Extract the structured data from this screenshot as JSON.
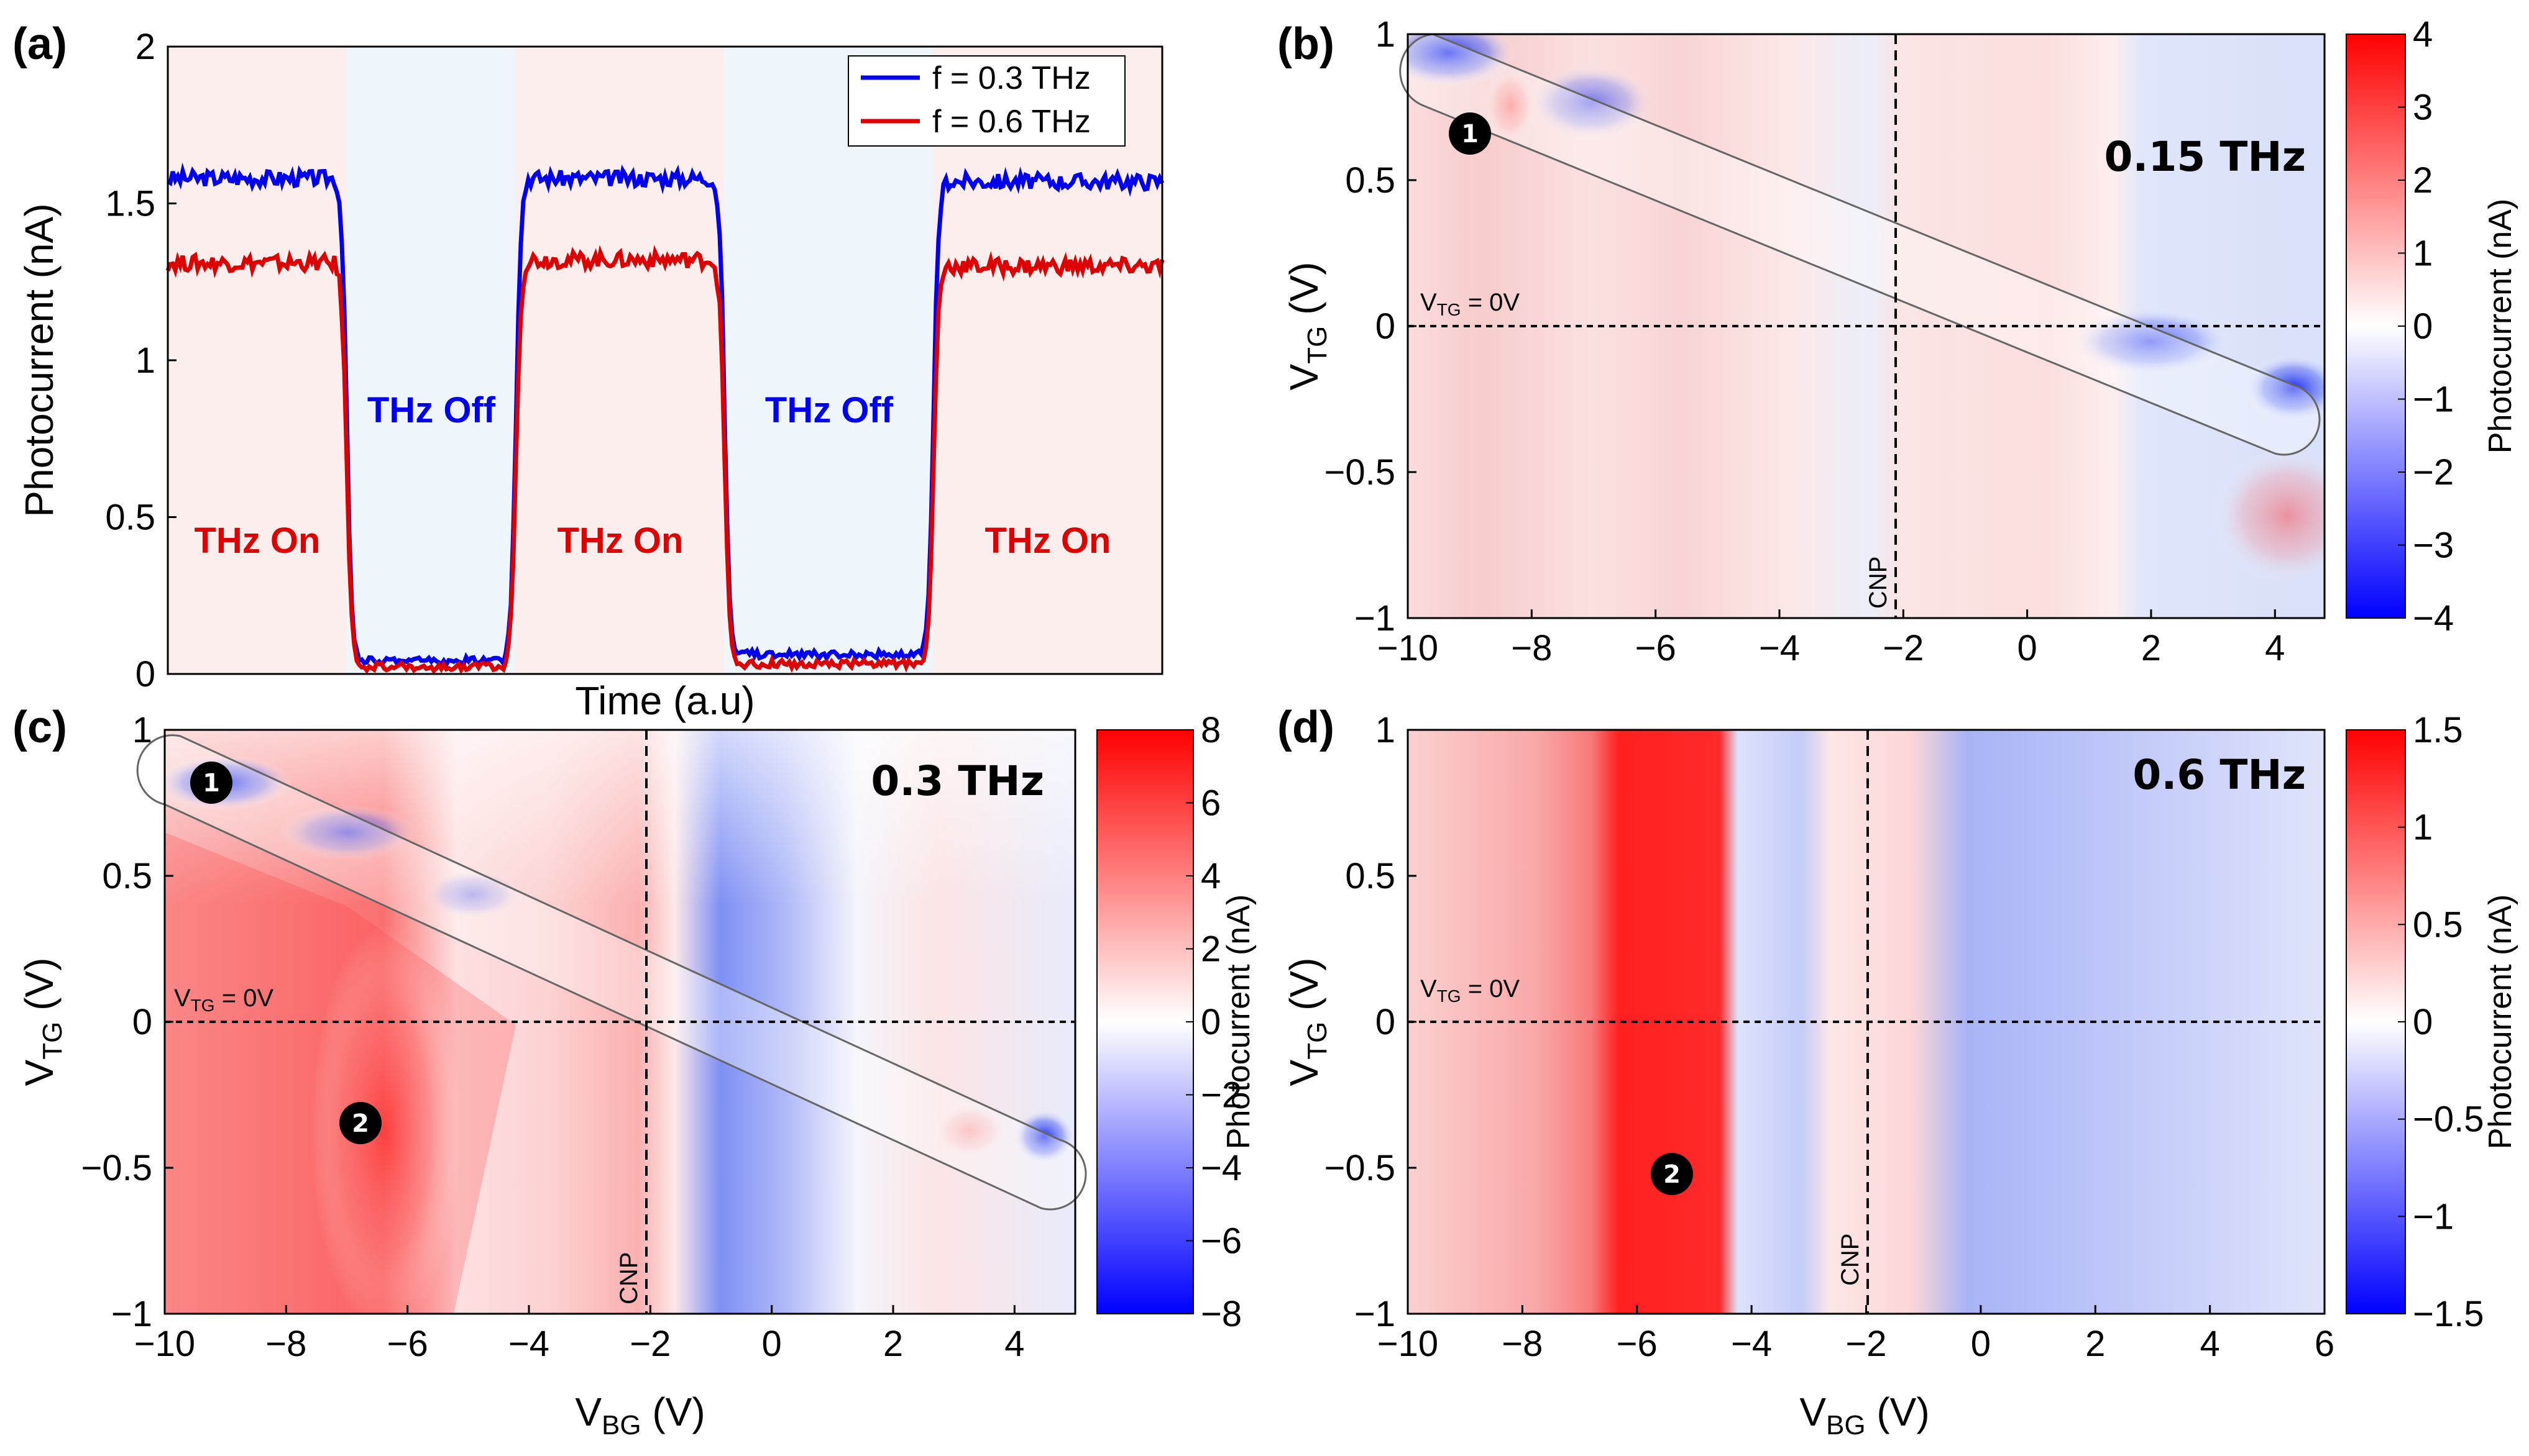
{
  "figure": {
    "panel_letters": [
      "(a)",
      "(b)",
      "(c)",
      "(d)"
    ],
    "state_labels": {
      "on": "THz On",
      "off": "THz Off"
    },
    "photocurrent_cb_label": "Photocurrent (nA)",
    "vtg_zero_label": "V",
    "vtg_zero_sub": "TG",
    "vtg_zero_suffix": " = 0V",
    "cnp_label": "CNP",
    "marker_1": "1",
    "marker_2": "2",
    "colors": {
      "blue": "#0000ee",
      "red": "#dd0000",
      "on_bg": "#fdeeee",
      "off_bg": "#eef6fc"
    }
  },
  "chart_data": [
    {
      "panel": "(a)",
      "type": "line",
      "title": "",
      "xlabel": "Time (a.u)",
      "ylabel": "Photocurrent (nA)",
      "xlim": [
        0,
        100
      ],
      "ylim": [
        0,
        2
      ],
      "yticks": [
        "0",
        "0.5",
        "1",
        "1.5",
        "2"
      ],
      "states": [
        {
          "label": "THz On",
          "start": 0,
          "end": 18
        },
        {
          "label": "THz Off",
          "start": 18,
          "end": 35
        },
        {
          "label": "THz On",
          "start": 35,
          "end": 56
        },
        {
          "label": "THz Off",
          "start": 56,
          "end": 77
        },
        {
          "label": "THz On",
          "start": 77,
          "end": 100
        }
      ],
      "series": [
        {
          "name": "f = 0.3 THz",
          "color": "#0000ee",
          "levels": [
            {
              "from": 0,
              "to": 18,
              "value": 1.58
            },
            {
              "from": 18,
              "to": 35,
              "value": 0.03
            },
            {
              "from": 35,
              "to": 56,
              "value": 1.58
            },
            {
              "from": 56,
              "to": 77,
              "value": 0.05
            },
            {
              "from": 77,
              "to": 100,
              "value": 1.57
            }
          ]
        },
        {
          "name": "f = 0.6 THz",
          "color": "#dd0000",
          "levels": [
            {
              "from": 0,
              "to": 18,
              "value": 1.31
            },
            {
              "from": 18,
              "to": 35,
              "value": 0.01
            },
            {
              "from": 35,
              "to": 56,
              "value": 1.32
            },
            {
              "from": 56,
              "to": 77,
              "value": 0.02
            },
            {
              "from": 77,
              "to": 100,
              "value": 1.3
            }
          ]
        }
      ],
      "legend": [
        "f = 0.3 THz",
        "f = 0.6 THz"
      ],
      "legend_position": "top-right"
    },
    {
      "panel": "(b)",
      "type": "heatmap",
      "frequency_label": "0.15 THz",
      "xlabel": "V_BG (V)",
      "ylabel": "V_TG (V)",
      "xlim": [
        -10,
        4.8
      ],
      "ylim": [
        -1,
        1
      ],
      "xticks": [
        "−10",
        "−8",
        "−6",
        "−4",
        "−2",
        "0",
        "2",
        "4"
      ],
      "yticks": [
        "−1",
        "−0.5",
        "0",
        "0.5",
        "1"
      ],
      "colorbar": {
        "min": -4,
        "max": 4,
        "ticks": [
          "4",
          "3",
          "2",
          "1",
          "0",
          "−1",
          "−2",
          "−3",
          "−4"
        ],
        "label": "Photocurrent (nA)"
      },
      "cnp_vbg": -2,
      "markers": [
        "1"
      ]
    },
    {
      "panel": "(c)",
      "type": "heatmap",
      "frequency_label": "0.3 THz",
      "xlabel": "V_BG (V)",
      "ylabel": "V_TG (V)",
      "xlim": [
        -10,
        5
      ],
      "ylim": [
        -1,
        1
      ],
      "xticks": [
        "−10",
        "−8",
        "−6",
        "−4",
        "−2",
        "0",
        "2",
        "4"
      ],
      "yticks": [
        "−1",
        "−0.5",
        "0",
        "0.5",
        "1"
      ],
      "colorbar": {
        "min": -8,
        "max": 8,
        "ticks": [
          "8",
          "6",
          "4",
          "2",
          "0",
          "−2",
          "−4",
          "−6",
          "−8"
        ],
        "label": "Photocurrent (nA)"
      },
      "cnp_vbg": -2,
      "markers": [
        "1",
        "2"
      ]
    },
    {
      "panel": "(d)",
      "type": "heatmap",
      "frequency_label": "0.6 THz",
      "xlabel": "V_BG (V)",
      "ylabel": "V_TG (V)",
      "xlim": [
        -10,
        6
      ],
      "ylim": [
        -1,
        1
      ],
      "xticks": [
        "−10",
        "−8",
        "−6",
        "−4",
        "−2",
        "0",
        "2",
        "4",
        "6"
      ],
      "yticks": [
        "−1",
        "−0.5",
        "0",
        "0.5",
        "1"
      ],
      "colorbar": {
        "min": -1.5,
        "max": 1.5,
        "ticks": [
          "1.5",
          "1",
          "0.5",
          "0",
          "−0.5",
          "−1",
          "−1.5"
        ],
        "label": "Photocurrent (nA)"
      },
      "cnp_vbg": -2,
      "markers": [
        "2"
      ]
    }
  ]
}
